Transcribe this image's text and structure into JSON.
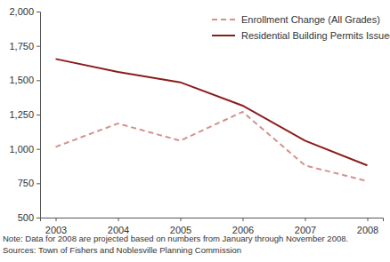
{
  "chart_data": {
    "type": "line",
    "categories": [
      "2003",
      "2004",
      "2005",
      "2006",
      "2007",
      "2008"
    ],
    "series": [
      {
        "name": "Enrollment Change (All Grades)",
        "color": "#d4918d",
        "line_style": "dashed",
        "values": [
          1015,
          1185,
          1060,
          1270,
          880,
          765
        ]
      },
      {
        "name": "Residential Building Permits Issued",
        "color": "#8c1c1c",
        "line_style": "solid",
        "values": [
          1655,
          1560,
          1485,
          1315,
          1060,
          880
        ]
      }
    ],
    "ylim": [
      500,
      2000
    ],
    "yticks": [
      500,
      750,
      {
        "value": 1000,
        "label": "1,000"
      },
      {
        "value": 1250,
        "label": "1,250"
      },
      {
        "value": 1500,
        "label": "1,500"
      },
      {
        "value": 1750,
        "label": "1,750"
      },
      {
        "value": 2000,
        "label": "2,000"
      }
    ],
    "grid": false,
    "legend": "top-right",
    "annotations": [
      "Note: Data for 2008 are projected based on numbers from January through November 2008.",
      "Sources: Town of Fishers and Noblesville Planning Commission"
    ]
  }
}
